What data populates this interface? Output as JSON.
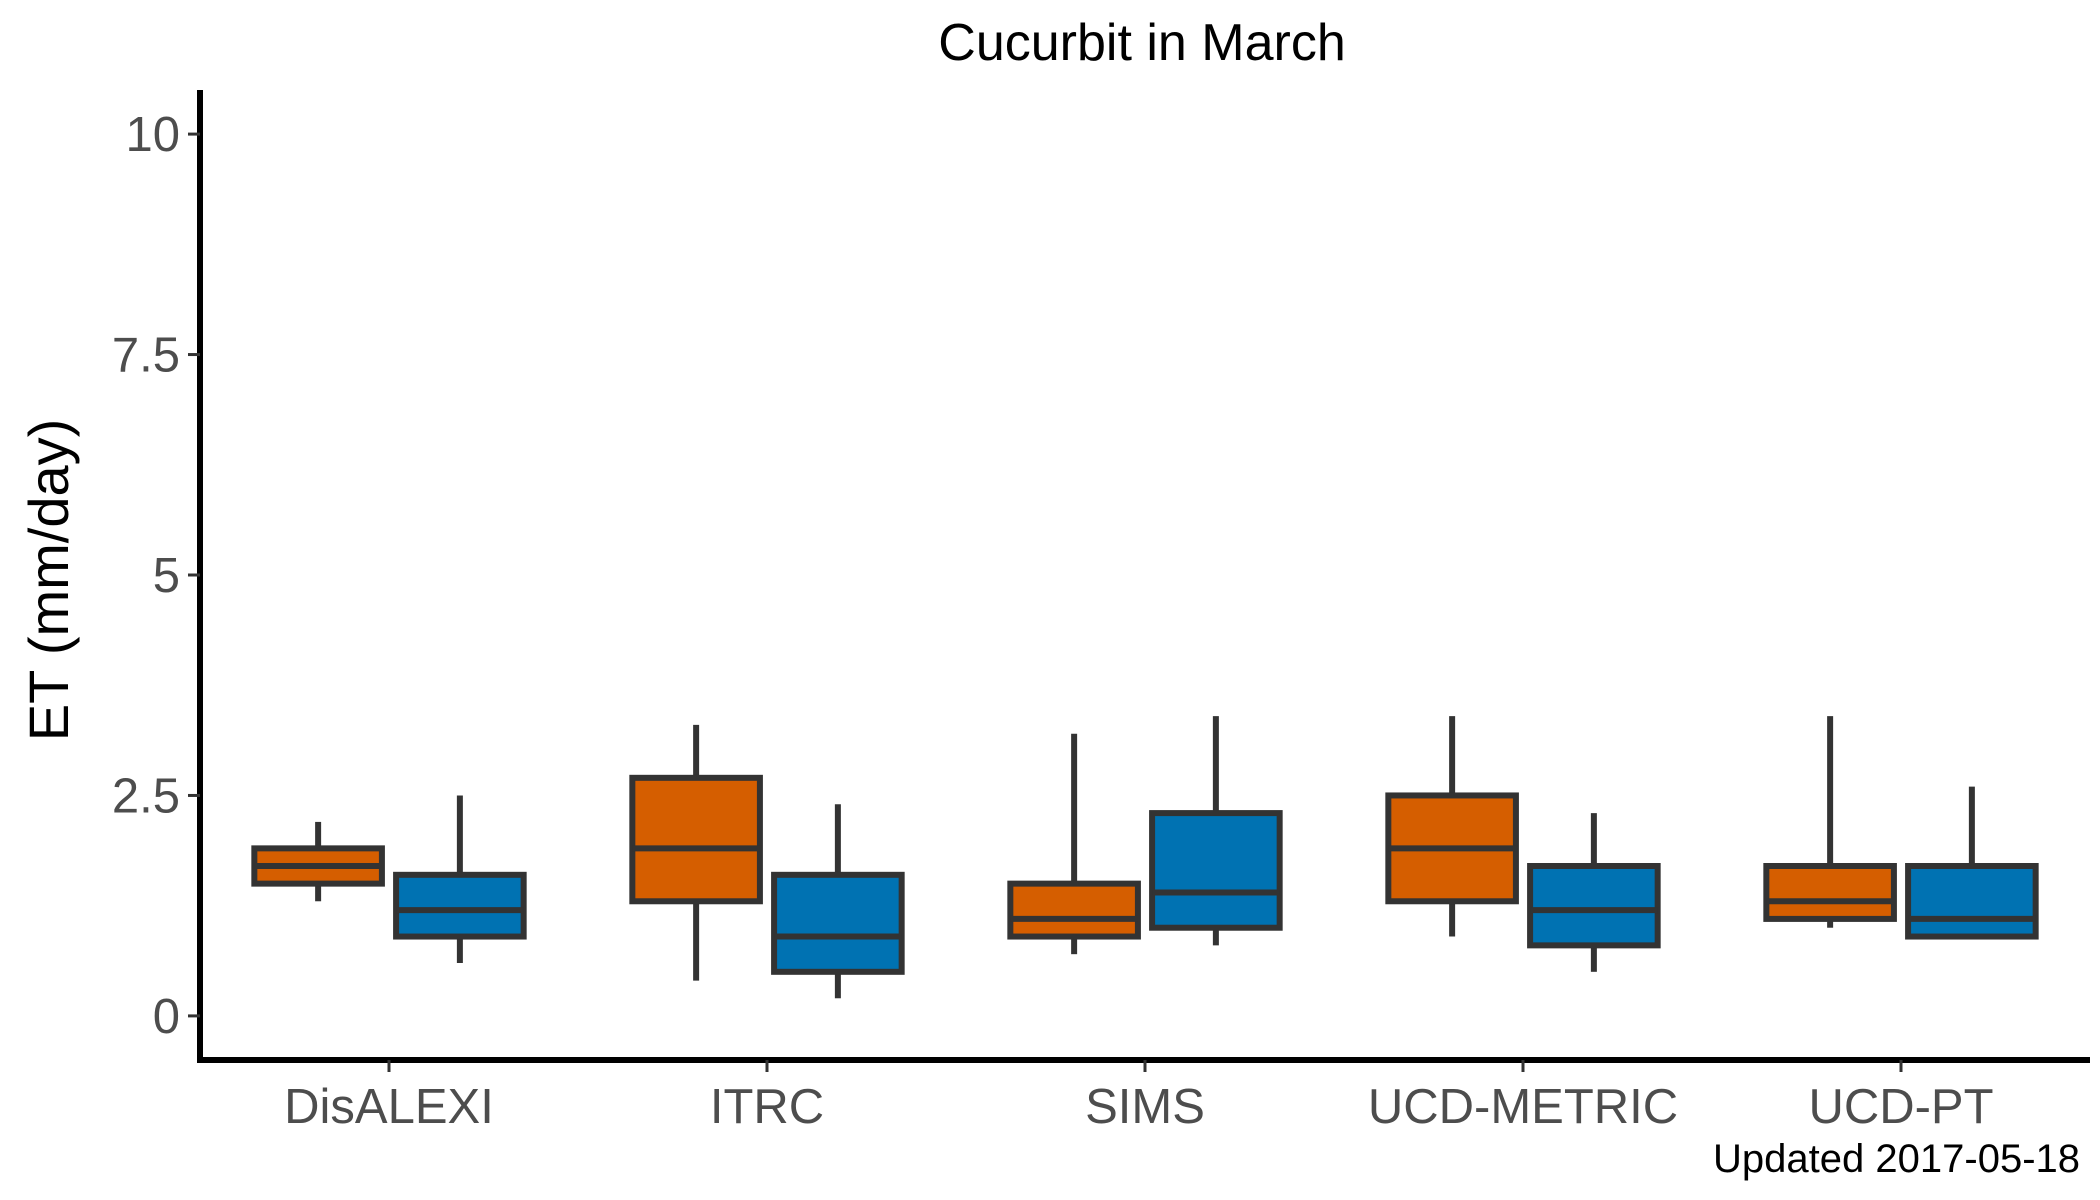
{
  "chart_data": {
    "type": "box",
    "title": "Cucurbit in March",
    "ylabel": "ET (mm/day)",
    "xlabel": "",
    "caption": "Updated  2017-05-18",
    "ylim": [
      -0.5,
      10.5
    ],
    "yticks": [
      0,
      2.5,
      5,
      7.5,
      10
    ],
    "ytick_labels": [
      "0",
      "2.5",
      "5",
      "7.5",
      "10"
    ],
    "categories": [
      "DisALEXI",
      "ITRC",
      "SIMS",
      "UCD-METRIC",
      "UCD-PT"
    ],
    "grid": false,
    "legend": "none",
    "series": [
      {
        "color": "#D55E00",
        "boxes": [
          {
            "min": 1.3,
            "q1": 1.5,
            "median": 1.7,
            "q3": 1.9,
            "max": 2.2
          },
          {
            "min": 0.4,
            "q1": 1.3,
            "median": 1.9,
            "q3": 2.7,
            "max": 3.3
          },
          {
            "min": 0.7,
            "q1": 0.9,
            "median": 1.1,
            "q3": 1.5,
            "max": 3.2
          },
          {
            "min": 0.9,
            "q1": 1.3,
            "median": 1.9,
            "q3": 2.5,
            "max": 3.4
          },
          {
            "min": 1.0,
            "q1": 1.1,
            "median": 1.3,
            "q3": 1.7,
            "max": 3.4
          }
        ]
      },
      {
        "color": "#0072B2",
        "boxes": [
          {
            "min": 0.6,
            "q1": 0.9,
            "median": 1.2,
            "q3": 1.6,
            "max": 2.5
          },
          {
            "min": 0.2,
            "q1": 0.5,
            "median": 0.9,
            "q3": 1.6,
            "max": 2.4
          },
          {
            "min": 0.8,
            "q1": 1.0,
            "median": 1.4,
            "q3": 2.3,
            "max": 3.4
          },
          {
            "min": 0.5,
            "q1": 0.8,
            "median": 1.2,
            "q3": 1.7,
            "max": 2.3
          },
          {
            "min": 0.9,
            "q1": 0.9,
            "median": 1.1,
            "q3": 1.7,
            "max": 2.6
          }
        ]
      }
    ]
  }
}
